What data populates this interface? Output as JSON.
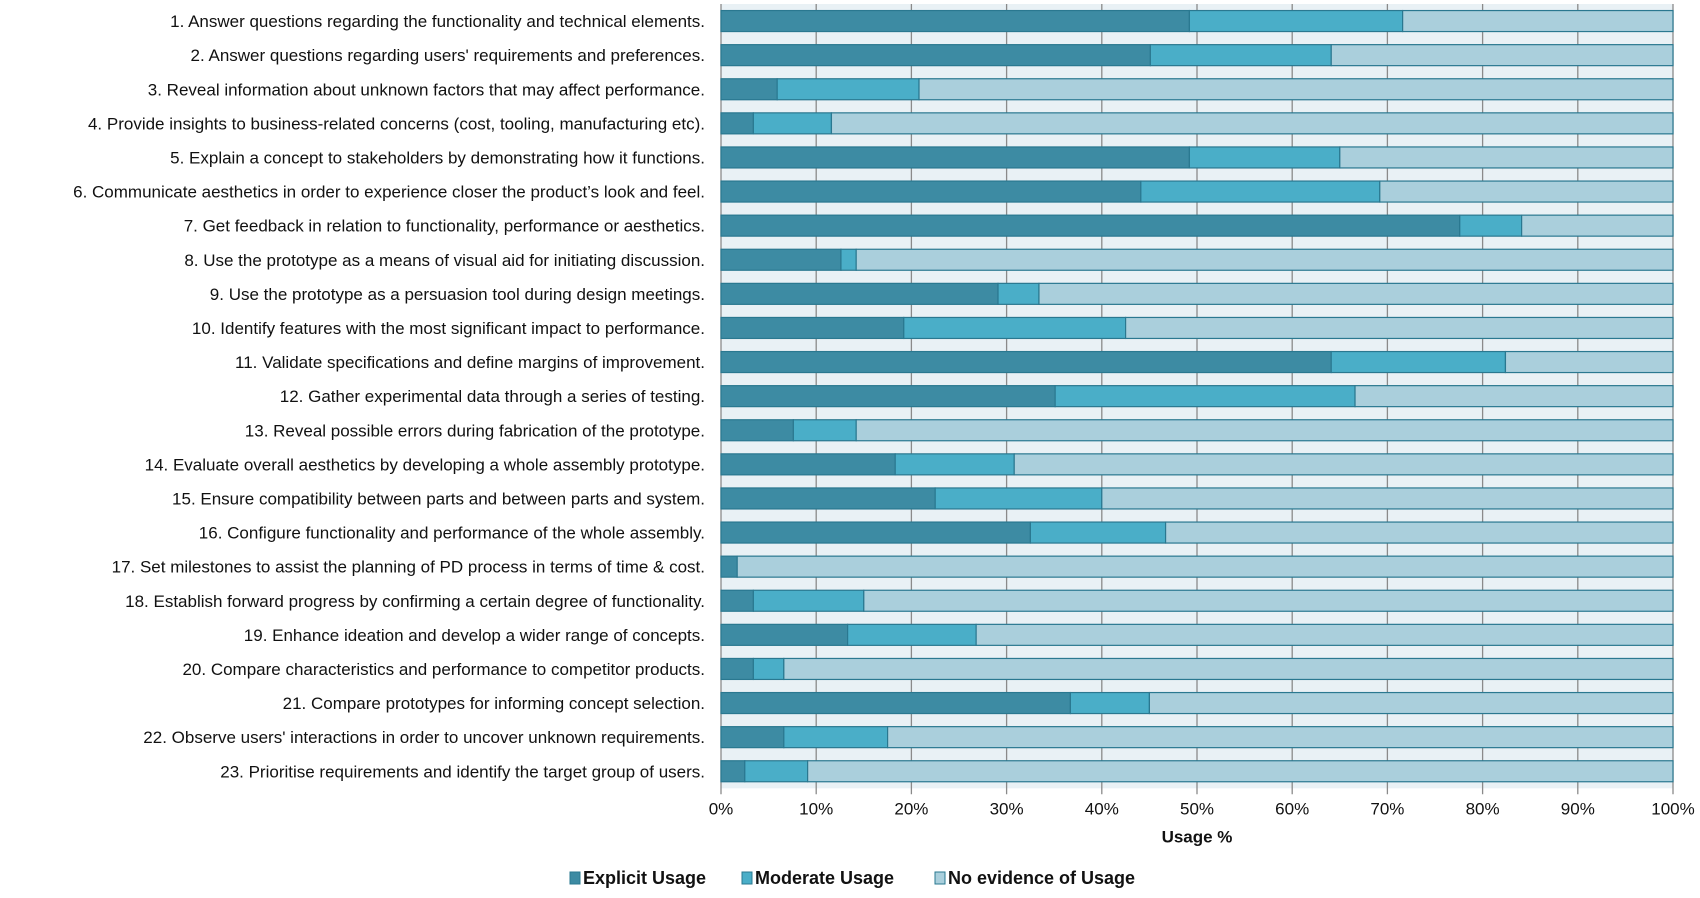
{
  "chart_data": {
    "type": "bar",
    "orientation": "horizontal",
    "stacked": "100%",
    "categories": [
      "1. Answer questions regarding the functionality and technical elements.",
      "2. Answer questions regarding users' requirements and preferences.",
      "3. Reveal information about unknown factors that may affect performance.",
      "4. Provide insights to business-related concerns (cost, tooling, manufacturing etc).",
      "5. Explain a concept to stakeholders by demonstrating how it functions.",
      "6. Communicate aesthetics in order to experience closer the product’s look and feel.",
      "7. Get feedback in relation to functionality, performance or aesthetics.",
      "8. Use the prototype as a means of visual aid for initiating discussion.",
      "9. Use the prototype as a persuasion tool during design meetings.",
      "10. Identify features with the most significant impact to performance.",
      "11. Validate specifications and define margins of improvement.",
      "12. Gather experimental data through a series of testing.",
      "13. Reveal possible errors during fabrication of the prototype.",
      "14. Evaluate overall aesthetics by developing a whole assembly prototype.",
      "15. Ensure compatibility between parts and between parts and system.",
      "16. Configure functionality and performance of the whole assembly.",
      "17. Set milestones to assist the planning of PD process in terms of time & cost.",
      "18. Establish forward progress by confirming a certain degree of functionality.",
      "19. Enhance ideation and develop a wider range of concepts.",
      "20. Compare characteristics and performance to competitor products.",
      "21. Compare prototypes for informing concept selection.",
      "22. Observe users' interactions in order to uncover unknown requirements.",
      "23. Prioritise requirements and identify the target group of users."
    ],
    "series": [
      {
        "name": "Explicit Usage",
        "color": "#3d8ba3",
        "values": [
          49.2,
          45.1,
          5.9,
          3.4,
          49.2,
          44.1,
          77.6,
          12.6,
          29.1,
          19.2,
          64.1,
          35.1,
          7.6,
          18.3,
          22.5,
          32.5,
          1.7,
          3.4,
          13.3,
          3.4,
          36.7,
          6.6,
          2.5
        ]
      },
      {
        "name": "Moderate Usage",
        "color": "#4aaec8",
        "values": [
          22.4,
          19.0,
          14.9,
          8.2,
          15.8,
          25.1,
          6.5,
          1.6,
          4.3,
          23.3,
          18.3,
          31.5,
          6.6,
          12.5,
          17.5,
          14.2,
          0.0,
          11.6,
          13.5,
          3.2,
          8.3,
          10.9,
          6.6
        ]
      },
      {
        "name": "No evidence of Usage",
        "color": "#aacfdc",
        "values": [
          28.4,
          35.9,
          79.2,
          88.4,
          35.0,
          30.8,
          15.9,
          85.8,
          66.6,
          57.5,
          17.6,
          33.4,
          85.8,
          69.2,
          60.0,
          53.3,
          98.3,
          85.0,
          73.2,
          93.4,
          55.0,
          82.5,
          90.9
        ]
      }
    ],
    "xlabel": "Usage %",
    "xlim": [
      0,
      100
    ],
    "xticks": [
      "0%",
      "10%",
      "20%",
      "30%",
      "40%",
      "50%",
      "60%",
      "70%",
      "80%",
      "90%",
      "100%"
    ],
    "grid": "vertical",
    "legend": "bottom"
  }
}
